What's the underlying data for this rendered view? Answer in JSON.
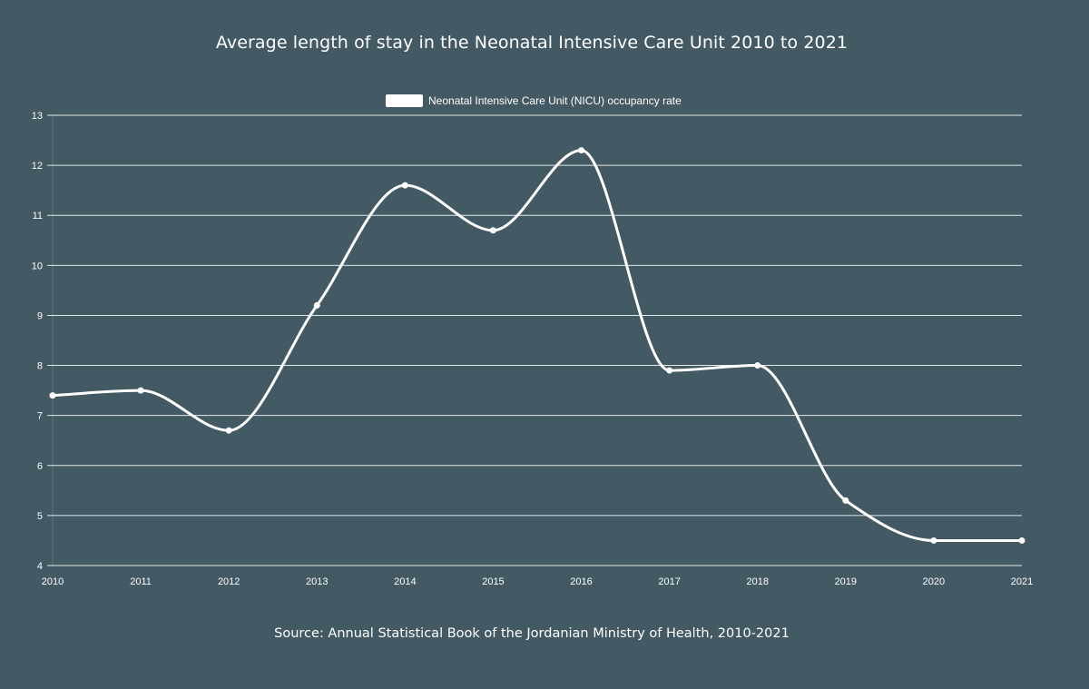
{
  "chart_data": {
    "type": "line",
    "title": "Average length of stay in the Neonatal Intensive Care Unit 2010 to 2021",
    "source": "Source: Annual Statistical Book of the Jordanian Ministry of Health, 2010-2021",
    "categories": [
      "2010",
      "2011",
      "2012",
      "2013",
      "2014",
      "2015",
      "2016",
      "2017",
      "2018",
      "2019",
      "2020",
      "2021"
    ],
    "series": [
      {
        "name": "Neonatal Intensive Care Unit (NICU) occupancy rate",
        "values": [
          7.4,
          7.5,
          6.7,
          9.2,
          11.6,
          10.7,
          12.3,
          7.9,
          8.0,
          5.3,
          4.5,
          4.5
        ],
        "color": "#ffffff"
      }
    ],
    "xlabel": "",
    "ylabel": "",
    "ylim": [
      4,
      13
    ],
    "yticks": [
      "4",
      "5",
      "6",
      "7",
      "8",
      "9",
      "10",
      "11",
      "12",
      "13"
    ],
    "grid": true,
    "legend_position": "top-center",
    "background": "#435a64",
    "gridline_color": "#ffffff"
  }
}
